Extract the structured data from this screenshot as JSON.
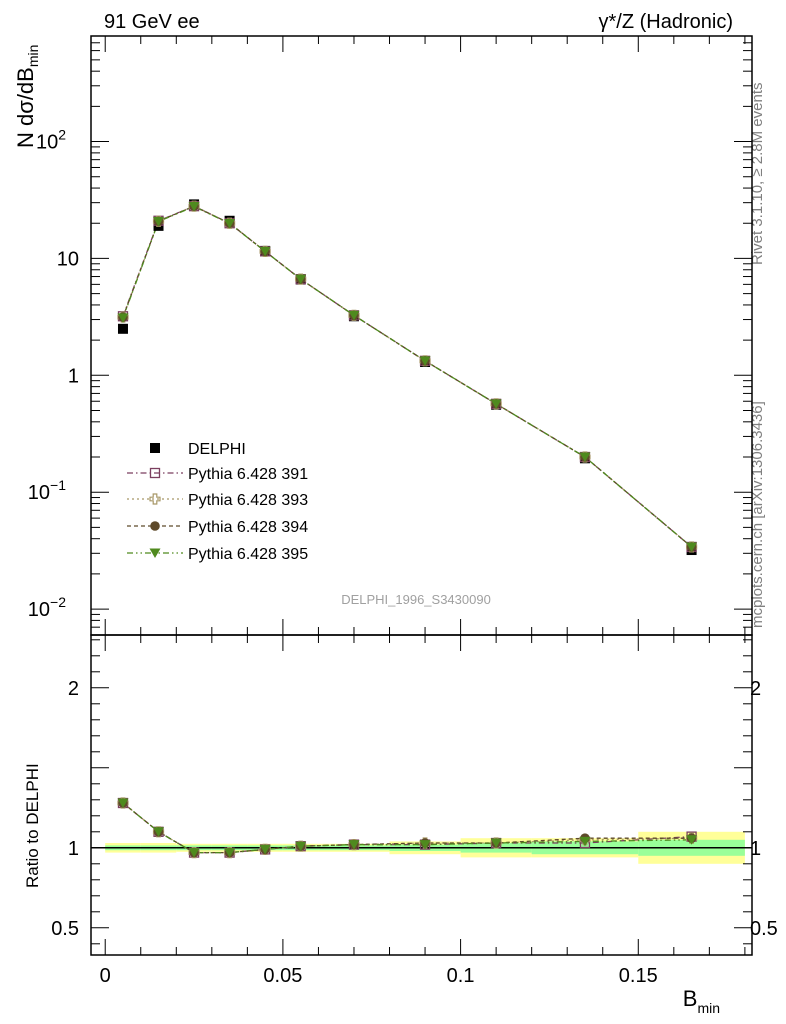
{
  "header": {
    "left": "91 GeV ee",
    "right": "γ*/Z (Hadronic)"
  },
  "side": {
    "rivet": "Rivet 3.1.10, ≥ 2.8M events",
    "mcplots": "mcplots.cern.ch [arXiv:1306.3436]"
  },
  "watermark": "DELPHI_1996_S3430090",
  "chart_data": {
    "type": "scatter",
    "x_axis": {
      "label_main": "B",
      "label_sub": "min",
      "range": [
        -0.004,
        0.182
      ],
      "ticks": [
        {
          "v": 0,
          "label": "0"
        },
        {
          "v": 0.05,
          "label": "0.05"
        },
        {
          "v": 0.1,
          "label": "0.1"
        },
        {
          "v": 0.15,
          "label": "0.15"
        }
      ]
    },
    "main_panel": {
      "y_label_main": "N dσ/dB",
      "y_label_sub": "min",
      "y_scale": "log",
      "y_range": [
        0.006,
        800
      ],
      "y_ticks": [
        {
          "v": 0.01,
          "base": "10",
          "exp": "−2"
        },
        {
          "v": 0.1,
          "base": "10",
          "exp": "−1"
        },
        {
          "v": 1,
          "base": "1",
          "exp": ""
        },
        {
          "v": 10,
          "base": "10",
          "exp": ""
        },
        {
          "v": 100,
          "base": "10",
          "exp": "2"
        }
      ]
    },
    "ratio_panel": {
      "y_label": "Ratio to DELPHI",
      "y_range": [
        0.33,
        2.33
      ],
      "y_ticks": [
        {
          "v": 0.5,
          "label": "0.5"
        },
        {
          "v": 1,
          "label": "1"
        },
        {
          "v": 2,
          "label": "2"
        }
      ],
      "bands": [
        {
          "x0": 0.0,
          "x1": 0.01,
          "green": [
            0.985,
            1.015
          ],
          "yellow": [
            0.97,
            1.03
          ]
        },
        {
          "x0": 0.01,
          "x1": 0.02,
          "green": [
            0.985,
            1.015
          ],
          "yellow": [
            0.97,
            1.03
          ]
        },
        {
          "x0": 0.02,
          "x1": 0.03,
          "green": [
            0.985,
            1.015
          ],
          "yellow": [
            0.975,
            1.025
          ]
        },
        {
          "x0": 0.03,
          "x1": 0.04,
          "green": [
            0.985,
            1.015
          ],
          "yellow": [
            0.975,
            1.025
          ]
        },
        {
          "x0": 0.04,
          "x1": 0.05,
          "green": [
            0.985,
            1.015
          ],
          "yellow": [
            0.975,
            1.025
          ]
        },
        {
          "x0": 0.05,
          "x1": 0.06,
          "green": [
            0.985,
            1.015
          ],
          "yellow": [
            0.975,
            1.025
          ]
        },
        {
          "x0": 0.06,
          "x1": 0.08,
          "green": [
            0.985,
            1.015
          ],
          "yellow": [
            0.975,
            1.025
          ]
        },
        {
          "x0": 0.08,
          "x1": 0.1,
          "green": [
            0.98,
            1.02
          ],
          "yellow": [
            0.96,
            1.04
          ]
        },
        {
          "x0": 0.1,
          "x1": 0.12,
          "green": [
            0.97,
            1.03
          ],
          "yellow": [
            0.94,
            1.06
          ]
        },
        {
          "x0": 0.12,
          "x1": 0.15,
          "green": [
            0.96,
            1.04
          ],
          "yellow": [
            0.94,
            1.06
          ]
        },
        {
          "x0": 0.15,
          "x1": 0.18,
          "green": [
            0.95,
            1.05
          ],
          "yellow": [
            0.9,
            1.1
          ]
        }
      ]
    },
    "x": [
      0.005,
      0.015,
      0.025,
      0.035,
      0.045,
      0.055,
      0.07,
      0.09,
      0.11,
      0.135,
      0.165
    ],
    "data": {
      "name": "DELPHI",
      "values": [
        2.5,
        19.0,
        29.0,
        21.0,
        11.6,
        6.6,
        3.2,
        1.3,
        0.56,
        0.195,
        0.032
      ]
    },
    "series": [
      {
        "name": "Pythia 6.428 391",
        "color": "#7b3f5f",
        "marker": "open-square",
        "dash": "6,3,1.5,3",
        "values": [
          3.2,
          21.0,
          28.0,
          20.0,
          11.5,
          6.65,
          3.26,
          1.33,
          0.57,
          0.2,
          0.034
        ],
        "ratio": [
          1.28,
          1.1,
          0.97,
          0.97,
          0.99,
          1.01,
          1.02,
          1.02,
          1.03,
          1.03,
          1.07
        ]
      },
      {
        "name": "Pythia 6.428 393",
        "color": "#a89868",
        "marker": "open-cross",
        "dash": "2,3",
        "values": [
          3.15,
          20.8,
          28.0,
          20.0,
          11.5,
          6.65,
          3.26,
          1.33,
          0.57,
          0.2,
          0.034
        ],
        "ratio": [
          1.28,
          1.1,
          0.97,
          0.97,
          0.99,
          1.01,
          1.02,
          1.03,
          1.03,
          1.05,
          1.06
        ]
      },
      {
        "name": "Pythia 6.428 394",
        "color": "#5e4a2a",
        "marker": "filled-circle",
        "dash": "4,3",
        "values": [
          3.15,
          20.8,
          28.0,
          20.0,
          11.5,
          6.65,
          3.26,
          1.33,
          0.57,
          0.2,
          0.034
        ],
        "ratio": [
          1.28,
          1.1,
          0.97,
          0.97,
          0.99,
          1.01,
          1.02,
          1.03,
          1.03,
          1.06,
          1.06
        ]
      },
      {
        "name": "Pythia 6.428 395",
        "color": "#4f8a1e",
        "marker": "filled-triangle-down",
        "dash": "6,3,1.5,3,1.5,3",
        "values": [
          3.1,
          20.7,
          27.8,
          19.9,
          11.5,
          6.65,
          3.26,
          1.33,
          0.57,
          0.2,
          0.034
        ],
        "ratio": [
          1.28,
          1.1,
          0.97,
          0.97,
          0.99,
          1.01,
          1.02,
          1.02,
          1.03,
          1.04,
          1.05
        ]
      }
    ]
  }
}
